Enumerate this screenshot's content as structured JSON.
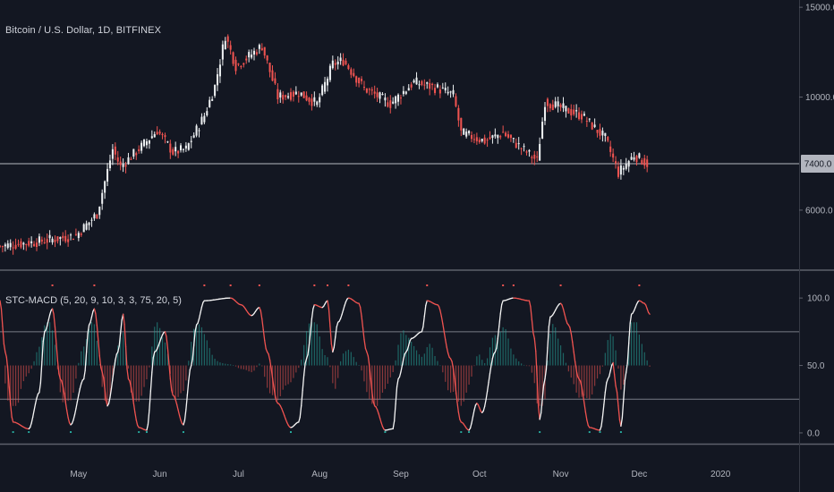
{
  "chart_data": {
    "type": "candlestick",
    "title": "Bitcoin / U.S. Dollar, 1D, BITFINEX",
    "indicator_title": "STC-MACD (5, 20, 9, 10, 3, 3, 75, 20, 5)",
    "current_price_label": "7400.0",
    "current_price": 7400,
    "price_axis": {
      "type": "log",
      "ylim": [
        4650,
        15500
      ],
      "ticks": [
        {
          "value": 6000,
          "label": "6000.0"
        },
        {
          "value": 10000,
          "label": "10000.0"
        },
        {
          "value": 15000,
          "label": "15000.0"
        }
      ]
    },
    "indicator_axis": {
      "ylim": [
        -8,
        118
      ],
      "ticks": [
        {
          "value": 0,
          "label": "0.0"
        },
        {
          "value": 50,
          "label": "50.0"
        },
        {
          "value": 100,
          "label": "100.0"
        }
      ],
      "levels": [
        75,
        25
      ]
    },
    "x_axis": {
      "start": "2019-04-01",
      "end": "2020-01-31",
      "ticks": [
        {
          "date": "2019-05-01",
          "label": "May"
        },
        {
          "date": "2019-06-01",
          "label": "Jun"
        },
        {
          "date": "2019-07-01",
          "label": "Jul"
        },
        {
          "date": "2019-08-01",
          "label": "Aug"
        },
        {
          "date": "2019-09-01",
          "label": "Sep"
        },
        {
          "date": "2019-10-01",
          "label": "Oct"
        },
        {
          "date": "2019-11-01",
          "label": "Nov"
        },
        {
          "date": "2019-12-01",
          "label": "Dec"
        },
        {
          "date": "2020-01-01",
          "label": "2020"
        }
      ]
    },
    "price_path": [
      [
        "2019-04-01",
        5100
      ],
      [
        "2019-04-15",
        5200
      ],
      [
        "2019-04-30",
        5350
      ],
      [
        "2019-05-08",
        5900
      ],
      [
        "2019-05-14",
        7900
      ],
      [
        "2019-05-17",
        7300
      ],
      [
        "2019-05-25",
        8000
      ],
      [
        "2019-05-31",
        8600
      ],
      [
        "2019-06-06",
        7800
      ],
      [
        "2019-06-11",
        7900
      ],
      [
        "2019-06-18",
        9200
      ],
      [
        "2019-06-22",
        10500
      ],
      [
        "2019-06-26",
        13200
      ],
      [
        "2019-06-30",
        11500
      ],
      [
        "2019-07-03",
        11800
      ],
      [
        "2019-07-10",
        12600
      ],
      [
        "2019-07-16",
        10000
      ],
      [
        "2019-07-24",
        10200
      ],
      [
        "2019-07-31",
        9700
      ],
      [
        "2019-08-06",
        11600
      ],
      [
        "2019-08-10",
        11800
      ],
      [
        "2019-08-18",
        10400
      ],
      [
        "2019-08-28",
        9700
      ],
      [
        "2019-09-06",
        10700
      ],
      [
        "2019-09-15",
        10400
      ],
      [
        "2019-09-21",
        10100
      ],
      [
        "2019-09-24",
        8500
      ],
      [
        "2019-10-03",
        8200
      ],
      [
        "2019-10-10",
        8500
      ],
      [
        "2019-10-23",
        7500
      ],
      [
        "2019-10-26",
        9800
      ],
      [
        "2019-11-04",
        9400
      ],
      [
        "2019-11-09",
        9200
      ],
      [
        "2019-11-18",
        8300
      ],
      [
        "2019-11-23",
        7100
      ],
      [
        "2019-11-29",
        7700
      ],
      [
        "2019-12-04",
        7400
      ]
    ],
    "series": [
      {
        "name": "STC",
        "points": [
          [
            "2019-04-01",
            98
          ],
          [
            "2019-04-03",
            60
          ],
          [
            "2019-04-06",
            8
          ],
          [
            "2019-04-12",
            3
          ],
          [
            "2019-04-16",
            30
          ],
          [
            "2019-04-18",
            75
          ],
          [
            "2019-04-21",
            92
          ],
          [
            "2019-04-24",
            40
          ],
          [
            "2019-04-28",
            6
          ],
          [
            "2019-05-03",
            40
          ],
          [
            "2019-05-05",
            80
          ],
          [
            "2019-05-07",
            92
          ],
          [
            "2019-05-10",
            45
          ],
          [
            "2019-05-12",
            20
          ],
          [
            "2019-05-16",
            60
          ],
          [
            "2019-05-18",
            88
          ],
          [
            "2019-05-20",
            40
          ],
          [
            "2019-05-24",
            4
          ],
          [
            "2019-05-27",
            2
          ],
          [
            "2019-05-30",
            60
          ],
          [
            "2019-06-03",
            75
          ],
          [
            "2019-06-06",
            28
          ],
          [
            "2019-06-10",
            6
          ],
          [
            "2019-06-13",
            50
          ],
          [
            "2019-06-15",
            80
          ],
          [
            "2019-06-18",
            98
          ],
          [
            "2019-06-28",
            100
          ],
          [
            "2019-07-02",
            95
          ],
          [
            "2019-07-06",
            87
          ],
          [
            "2019-07-09",
            93
          ],
          [
            "2019-07-12",
            60
          ],
          [
            "2019-07-16",
            22
          ],
          [
            "2019-07-21",
            4
          ],
          [
            "2019-07-24",
            8
          ],
          [
            "2019-07-27",
            55
          ],
          [
            "2019-07-30",
            95
          ],
          [
            "2019-08-02",
            93
          ],
          [
            "2019-08-04",
            98
          ],
          [
            "2019-08-06",
            60
          ],
          [
            "2019-08-08",
            82
          ],
          [
            "2019-08-12",
            100
          ],
          [
            "2019-08-16",
            96
          ],
          [
            "2019-08-19",
            60
          ],
          [
            "2019-08-22",
            20
          ],
          [
            "2019-08-26",
            2
          ],
          [
            "2019-08-29",
            3
          ],
          [
            "2019-08-31",
            40
          ],
          [
            "2019-09-03",
            60
          ],
          [
            "2019-09-05",
            70
          ],
          [
            "2019-09-09",
            75
          ],
          [
            "2019-09-11",
            98
          ],
          [
            "2019-09-15",
            95
          ],
          [
            "2019-09-20",
            55
          ],
          [
            "2019-09-24",
            8
          ],
          [
            "2019-09-27",
            2
          ],
          [
            "2019-09-30",
            22
          ],
          [
            "2019-10-02",
            15
          ],
          [
            "2019-10-07",
            60
          ],
          [
            "2019-10-10",
            98
          ],
          [
            "2019-10-14",
            100
          ],
          [
            "2019-10-20",
            98
          ],
          [
            "2019-10-22",
            70
          ],
          [
            "2019-10-24",
            10
          ],
          [
            "2019-10-26",
            40
          ],
          [
            "2019-10-28",
            86
          ],
          [
            "2019-11-01",
            96
          ],
          [
            "2019-11-04",
            80
          ],
          [
            "2019-11-08",
            40
          ],
          [
            "2019-11-12",
            4
          ],
          [
            "2019-11-16",
            2
          ],
          [
            "2019-11-19",
            40
          ],
          [
            "2019-11-21",
            52
          ],
          [
            "2019-11-22",
            35
          ],
          [
            "2019-11-24",
            5
          ],
          [
            "2019-11-26",
            45
          ],
          [
            "2019-11-28",
            88
          ],
          [
            "2019-12-01",
            98
          ],
          [
            "2019-12-03",
            96
          ],
          [
            "2019-12-05",
            88
          ]
        ]
      }
    ]
  }
}
